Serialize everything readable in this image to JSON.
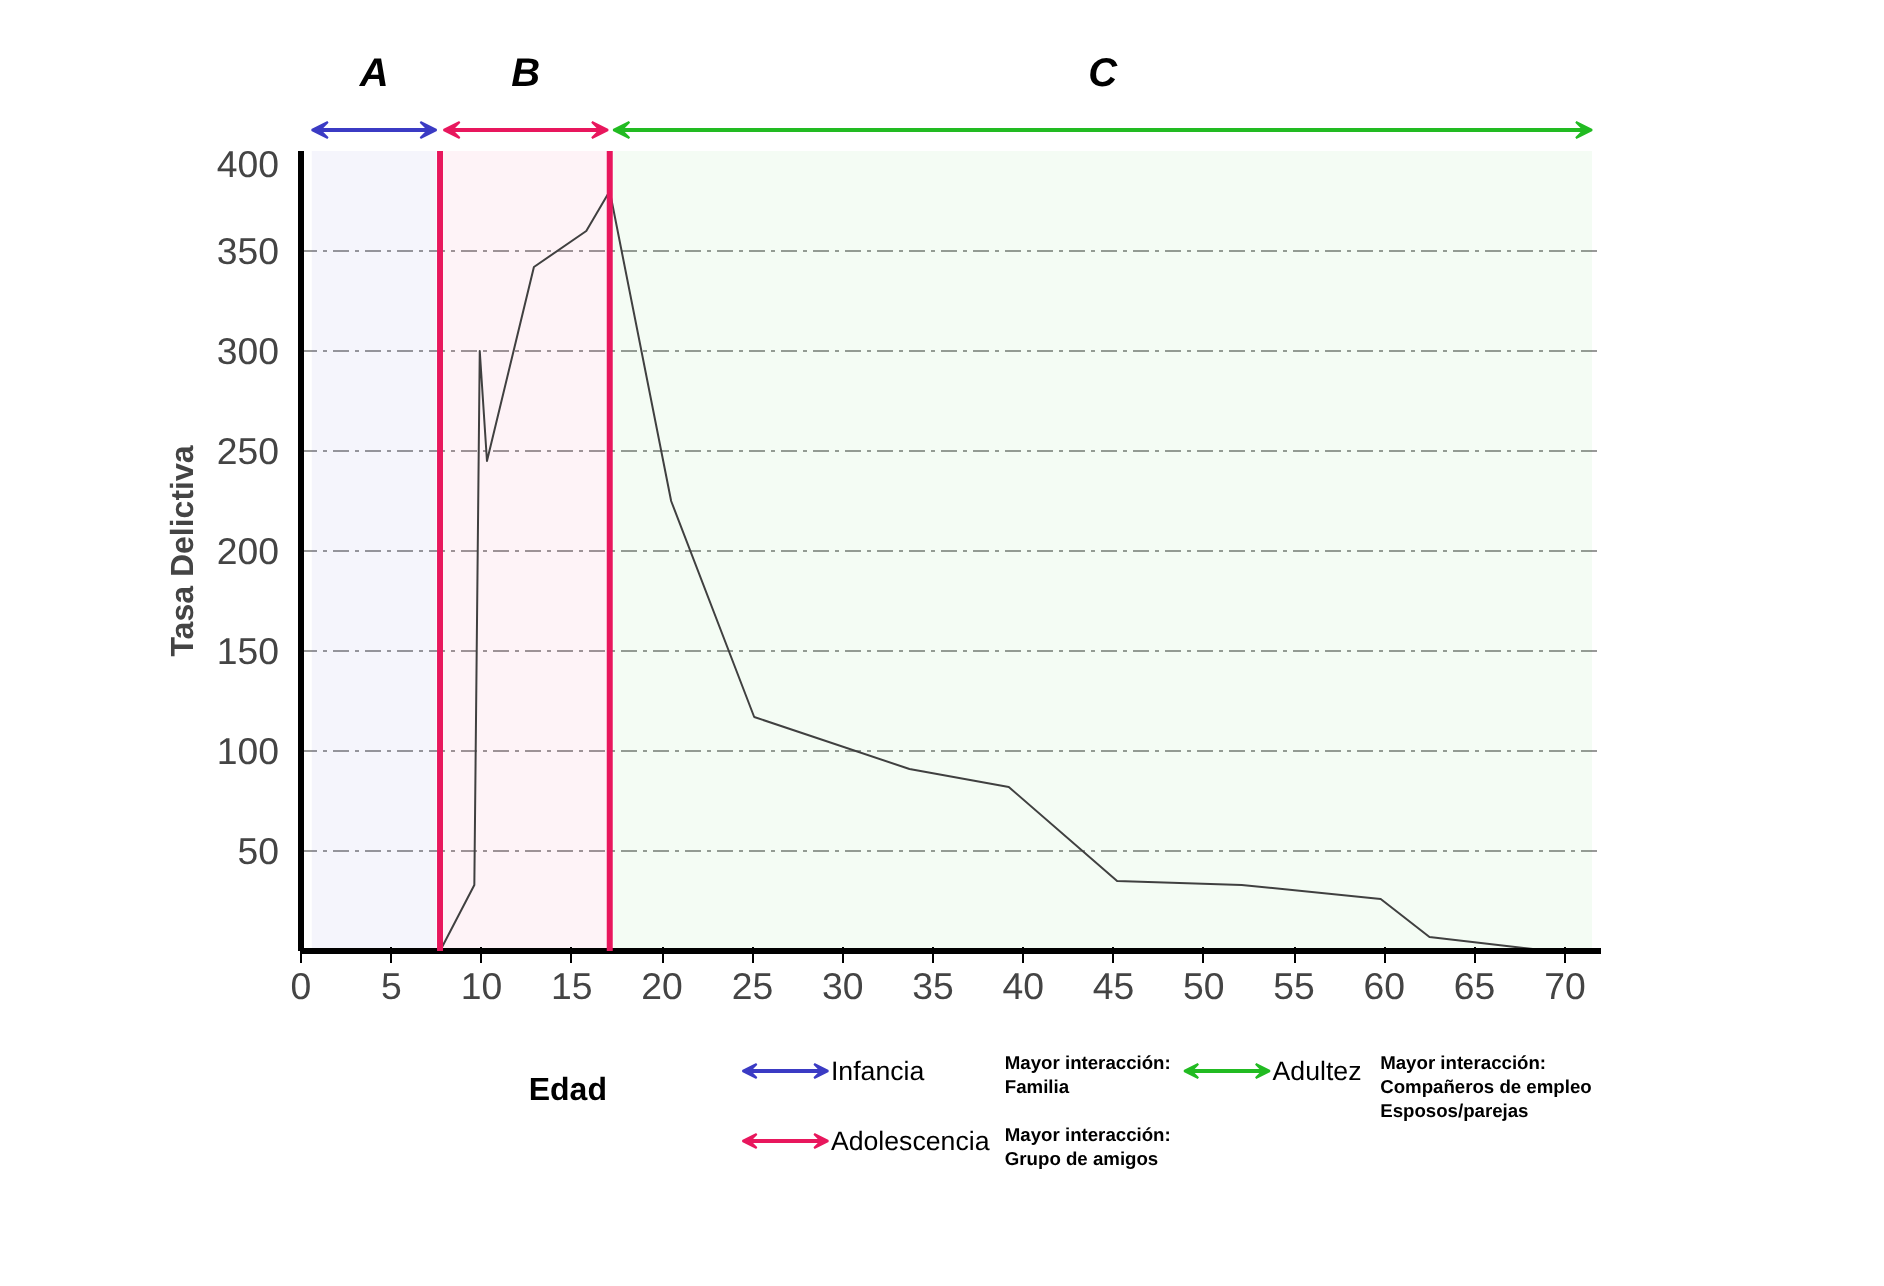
{
  "chart_data": {
    "type": "line",
    "ylabel": "Tasa Delictiva",
    "xlabel": "Edad",
    "x": [
      7.7,
      9.6,
      9.9,
      10.3,
      12.9,
      15.8,
      17.1,
      20.5,
      25.1,
      33.7,
      39.2,
      45.2,
      52.1,
      59.8,
      62.5,
      69.2
    ],
    "series": [
      {
        "color": "#404040",
        "values": [
          0,
          33,
          300,
          245,
          342,
          360,
          380,
          225,
          117,
          91,
          82,
          35,
          33,
          26,
          7,
          0
        ]
      }
    ],
    "xlim": [
      0,
      72
    ],
    "xticks": [
      0,
      5,
      10,
      15,
      20,
      25,
      30,
      35,
      40,
      45,
      50,
      55,
      60,
      65,
      70
    ],
    "ylim": [
      0,
      400
    ],
    "yticks": [
      {
        "value": 0,
        "label": null
      },
      50,
      100,
      150,
      200,
      250,
      300,
      350,
      400
    ],
    "grid": "y",
    "marker": "none",
    "line_style": "solid",
    "ref_lines": [
      {
        "axis": "x",
        "value": 7.7,
        "label": null,
        "color": "#e8175d"
      },
      {
        "axis": "x",
        "value": 17.1,
        "label": null,
        "color": "#e8175d"
      }
    ],
    "bands": [
      {
        "axis": "x",
        "from": 0.6,
        "to": 7.5,
        "label": "A",
        "color": "#3b3bc4"
      },
      {
        "axis": "x",
        "from": 7.9,
        "to": 17.0,
        "label": "B",
        "color": "#e8175d"
      },
      {
        "axis": "x",
        "from": 17.3,
        "to": 71.5,
        "label": "C",
        "color": "#22bb22"
      }
    ],
    "annotations": [
      "Infancia",
      "Adolescencia",
      "Adultez",
      "Mayor interacción:\nFamilia",
      "Mayor interacción:\nGrupo de amigos",
      "Mayor interacción:\nCompañeros de empleo\nEsposos/parejas"
    ]
  }
}
